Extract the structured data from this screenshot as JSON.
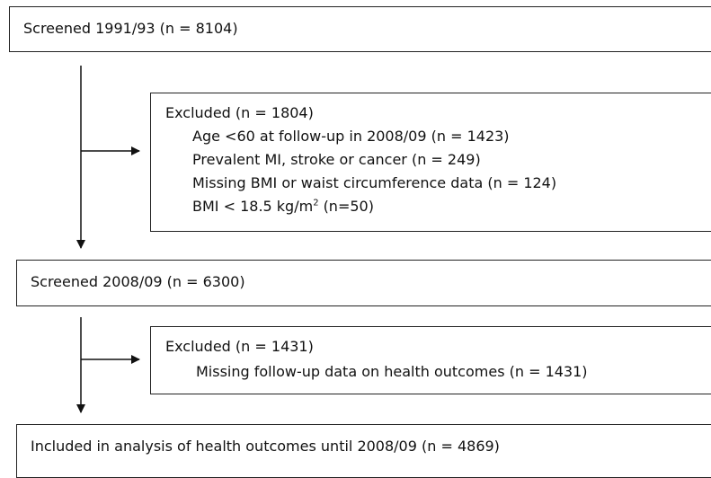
{
  "boxes": [
    {
      "lines": [
        "Screened 1991/93 (n = 8104)"
      ]
    },
    {
      "title": "Excluded (n = 1804)",
      "lines": [
        "Age <60 at follow-up in 2008/09 (n = 1423)",
        "Prevalent MI, stroke or cancer (n = 249)",
        "Missing BMI or waist circumference data (n = 124)"
      ],
      "bmi_line": {
        "text": "BMI < 18.5 kg/m",
        "sup": "2",
        "after": "(n=50)"
      }
    },
    {
      "lines": [
        "Screened 2008/09 (n = 6300)"
      ]
    },
    {
      "title": "Excluded (n = 1431)",
      "lines": [
        "Missing follow-up data on health outcomes (n = 1431)"
      ]
    },
    {
      "lines": [
        "Included in analysis of health outcomes until 2008/09 (n = 4869)"
      ]
    }
  ]
}
